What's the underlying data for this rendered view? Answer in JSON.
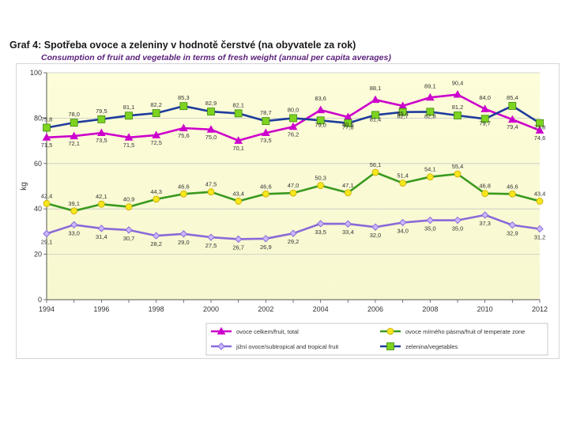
{
  "header": {
    "title": "Graf 4: Spotřeba ovoce a zeleniny v hodnotě čerstvé (na obyvatele za rok)",
    "subtitle": "Consumption of fruit and vegetable in terms of fresh weight (annual per capita averages)"
  },
  "chart_data": {
    "type": "line",
    "title": "Graf 4: Spotřeba ovoce a zeleniny v hodnotě čerstvé (na obyvatele za rok)",
    "subtitle": "Consumption of fruit and vegetable in terms of fresh weight (annual per capita averages)",
    "xlabel": "",
    "ylabel": "kg",
    "ylim": [
      0,
      100
    ],
    "yticks": [
      0,
      20,
      40,
      60,
      80,
      100
    ],
    "xticks": [
      1994,
      1996,
      1998,
      2000,
      2002,
      2004,
      2006,
      2008,
      2010,
      2012
    ],
    "x": [
      1994,
      1995,
      1996,
      1997,
      1998,
      1999,
      2000,
      2001,
      2002,
      2003,
      2004,
      2005,
      2006,
      2007,
      2008,
      2009,
      2010,
      2011,
      2012
    ],
    "grid": true,
    "legend_position": "bottom-right",
    "series": [
      {
        "name": "ovoce celkem/fruit, total",
        "color": "#cc00cc",
        "marker": "triangle",
        "values": [
          71.5,
          72.1,
          73.5,
          71.5,
          72.5,
          75.6,
          75.0,
          70.1,
          73.5,
          76.2,
          83.6,
          80.5,
          88.1,
          85.4,
          89.1,
          90.4,
          84.0,
          79.4,
          74.6
        ],
        "labels": [
          "71,5",
          "72,1",
          "73,5",
          "71,5",
          "72,5",
          "75,6",
          "75,0",
          "70,1",
          "73,5",
          "76,2",
          "83,6",
          "80,5",
          "88,1",
          "85,4",
          "89,1",
          "90,4",
          "84,0",
          "79,4",
          "74,6"
        ]
      },
      {
        "name": "ovoce mírného pásma/fruit of temperate zone",
        "color": "#3a9a1e",
        "marker": "circle",
        "values": [
          42.4,
          39.1,
          42.1,
          40.9,
          44.3,
          46.6,
          47.5,
          43.4,
          46.6,
          47.0,
          50.3,
          47.1,
          56.1,
          51.4,
          54.1,
          55.4,
          46.8,
          46.6,
          43.4
        ],
        "labels": [
          "42,4",
          "39,1",
          "42,1",
          "40,9",
          "44,3",
          "46,6",
          "47,5",
          "43,4",
          "46,6",
          "47,0",
          "50,3",
          "47,1",
          "56,1",
          "51,4",
          "54,1",
          "55,4",
          "46,8",
          "46,6",
          "43,4"
        ]
      },
      {
        "name": "jižní ovoce/subtropical and tropical fruit",
        "color": "#8a6ad8",
        "marker": "diamond",
        "values": [
          29.1,
          33.0,
          31.4,
          30.7,
          28.2,
          29.0,
          27.5,
          26.7,
          26.9,
          29.2,
          33.5,
          33.4,
          32.0,
          34.0,
          35.0,
          35.0,
          37.3,
          32.9,
          31.2
        ],
        "labels": [
          "29,1",
          "33,0",
          "31,4",
          "30,7",
          "28,2",
          "29,0",
          "27,5",
          "26,7",
          "26,9",
          "29,2",
          "33,5",
          "33,4",
          "32,0",
          "34,0",
          "35,0",
          "35,0",
          "37,3",
          "32,9",
          "31,2"
        ]
      },
      {
        "name": "zelenina/vegetables",
        "color": "#1e3c9c",
        "marker": "square",
        "values": [
          75.8,
          78.0,
          79.5,
          81.1,
          82.2,
          85.3,
          82.9,
          82.1,
          78.7,
          80.0,
          79.0,
          77.8,
          81.4,
          82.7,
          82.8,
          81.2,
          79.7,
          85.4,
          77.8
        ],
        "labels": [
          "75,8",
          "78,0",
          "79,5",
          "81,1",
          "82,2",
          "85,3",
          "82,9",
          "82,1",
          "78,7",
          "80,0",
          "79,0",
          "77,8",
          "81,4",
          "82,7",
          "82,8",
          "81,2",
          "79,7",
          "85,4",
          "77,8"
        ]
      }
    ]
  }
}
